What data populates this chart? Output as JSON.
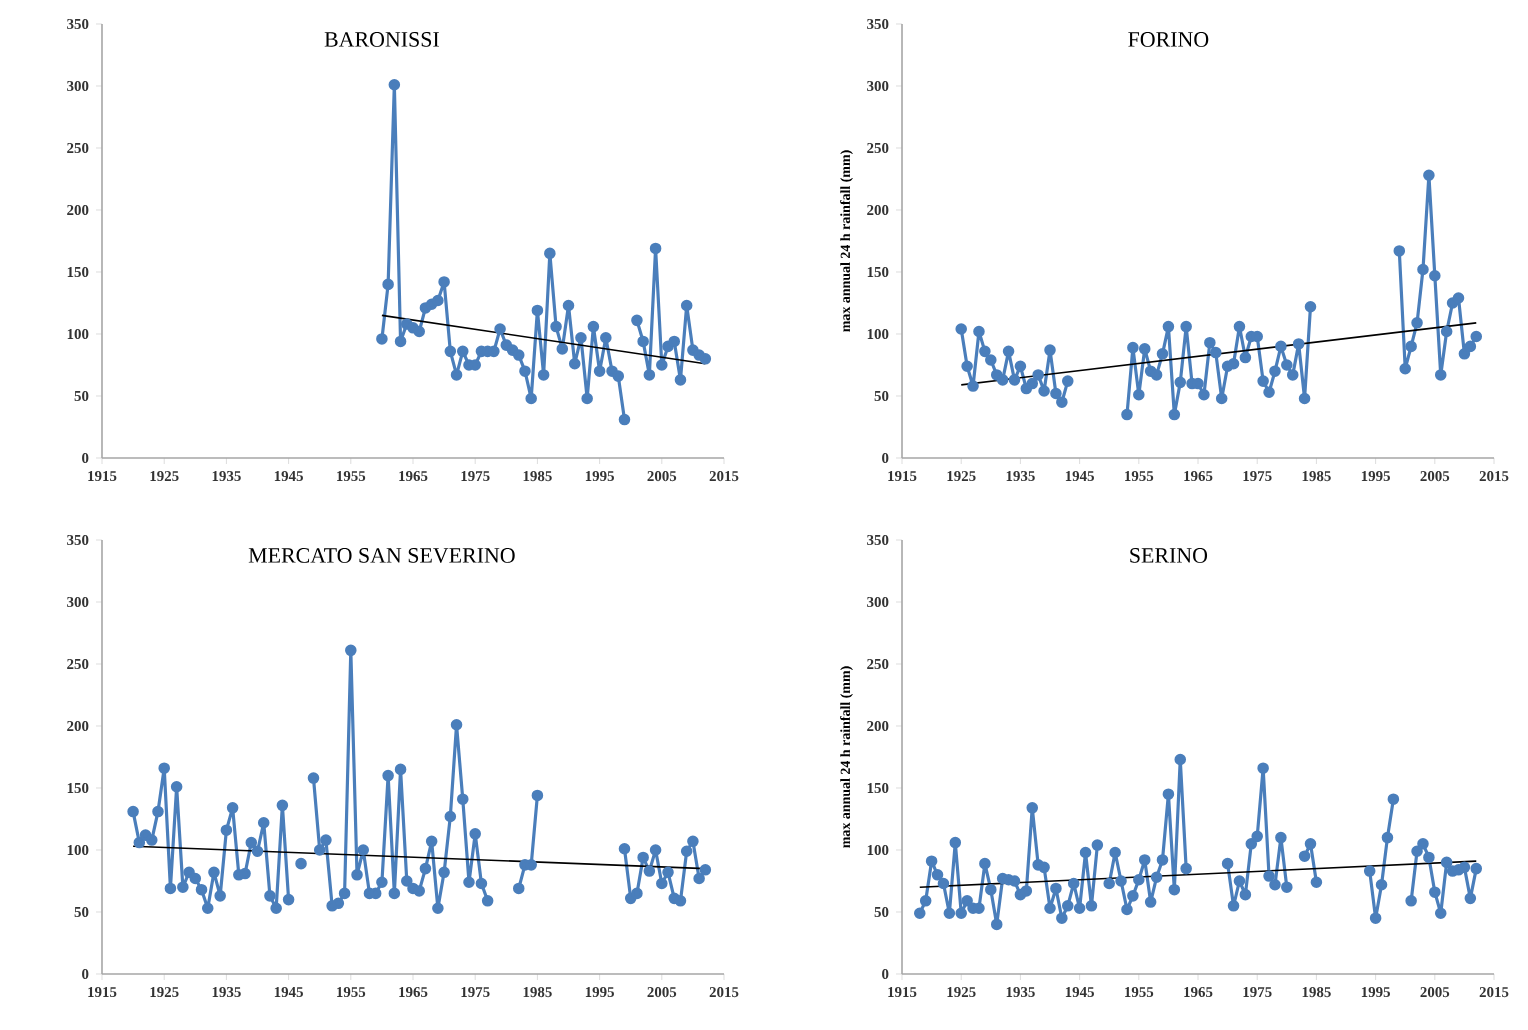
{
  "chart_data": [
    {
      "type": "line",
      "title": "BARONISSI",
      "xlim": [
        1915,
        2015
      ],
      "xticks": [
        1915,
        1925,
        1935,
        1945,
        1955,
        1965,
        1975,
        1985,
        1995,
        2005,
        2015
      ],
      "ylim": [
        0,
        350
      ],
      "yticks": [
        0,
        50,
        100,
        150,
        200,
        250,
        300,
        350
      ],
      "series": [
        {
          "color": "#4a7ebb",
          "marker": "circle",
          "x": [
            1960,
            1961,
            1962,
            1963,
            1964,
            1965,
            1966,
            1967,
            1968,
            1969,
            1970,
            1971,
            1972,
            1973,
            1974,
            1975,
            1976,
            1977,
            1978,
            1979,
            1980,
            1981,
            1982,
            1983,
            1984,
            1985,
            1986,
            1987,
            1988,
            1989,
            1990,
            1991,
            1992,
            1993,
            1994,
            1995,
            1996,
            1997,
            1998,
            1999,
            2000,
            2001,
            2002,
            2003,
            2004,
            2005,
            2006,
            2007,
            2008,
            2009,
            2010,
            2011,
            2012
          ],
          "values": [
            96,
            140,
            301,
            94,
            108,
            105,
            102,
            121,
            124,
            127,
            142,
            86,
            67,
            86,
            75,
            75,
            86,
            86,
            86,
            104,
            91,
            87,
            83,
            70,
            48,
            119,
            67,
            165,
            106,
            88,
            123,
            76,
            97,
            48,
            106,
            70,
            97,
            70,
            66,
            31,
            null,
            111,
            94,
            67,
            169,
            75,
            90,
            94,
            63,
            123,
            87,
            83,
            80
          ]
        },
        {
          "type": "line",
          "color": "#000000",
          "marker": "none",
          "x": [
            1960,
            2012
          ],
          "values": [
            115,
            76
          ]
        }
      ]
    },
    {
      "type": "line",
      "title": "FORINO",
      "ylabel": "max annual 24 h rainfall (mm)",
      "xlim": [
        1915,
        2015
      ],
      "xticks": [
        1915,
        1925,
        1935,
        1945,
        1955,
        1965,
        1975,
        1985,
        1995,
        2005,
        2015
      ],
      "ylim": [
        0,
        350
      ],
      "yticks": [
        0,
        50,
        100,
        150,
        200,
        250,
        300,
        350
      ],
      "series": [
        {
          "color": "#4a7ebb",
          "marker": "circle",
          "x": [
            1925,
            1926,
            1927,
            1928,
            1929,
            1930,
            1931,
            1932,
            1933,
            1934,
            1935,
            1936,
            1937,
            1938,
            1939,
            1940,
            1941,
            1942,
            1943,
            1944,
            1945,
            1946,
            1947,
            1948,
            1949,
            1950,
            1951,
            1952,
            1953,
            1954,
            1955,
            1956,
            1957,
            1958,
            1959,
            1960,
            1961,
            1962,
            1963,
            1964,
            1965,
            1966,
            1967,
            1968,
            1969,
            1970,
            1971,
            1972,
            1973,
            1974,
            1975,
            1976,
            1977,
            1978,
            1979,
            1980,
            1981,
            1982,
            1983,
            1984,
            1985,
            1986,
            1987,
            1988,
            1989,
            1990,
            1991,
            1992,
            1993,
            1994,
            1995,
            1996,
            1997,
            1998,
            1999,
            2000,
            2001,
            2002,
            2003,
            2004,
            2005,
            2006,
            2007,
            2008,
            2009,
            2010,
            2011,
            2012
          ],
          "values": [
            104,
            74,
            58,
            102,
            86,
            79,
            67,
            63,
            86,
            63,
            74,
            56,
            60,
            67,
            54,
            87,
            52,
            45,
            62,
            null,
            null,
            null,
            null,
            null,
            null,
            null,
            null,
            null,
            35,
            89,
            51,
            88,
            70,
            67,
            84,
            106,
            35,
            61,
            106,
            60,
            60,
            51,
            93,
            85,
            48,
            74,
            76,
            106,
            81,
            98,
            98,
            62,
            53,
            70,
            90,
            75,
            67,
            92,
            48,
            122,
            null,
            null,
            null,
            null,
            null,
            null,
            null,
            null,
            null,
            null,
            null,
            null,
            null,
            null,
            167,
            72,
            90,
            109,
            152,
            228,
            147,
            67,
            102,
            125,
            129,
            84,
            90,
            98
          ]
        },
        {
          "type": "line",
          "color": "#000000",
          "marker": "none",
          "x": [
            1925,
            2012
          ],
          "values": [
            59,
            109
          ]
        }
      ]
    },
    {
      "type": "line",
      "title": "MERCATO SAN SEVERINO",
      "xlim": [
        1915,
        2015
      ],
      "xticks": [
        1915,
        1925,
        1935,
        1945,
        1955,
        1965,
        1975,
        1985,
        1995,
        2005,
        2015
      ],
      "ylim": [
        0,
        350
      ],
      "yticks": [
        0,
        50,
        100,
        150,
        200,
        250,
        300,
        350
      ],
      "series": [
        {
          "color": "#4a7ebb",
          "marker": "circle",
          "x": [
            1920,
            1921,
            1922,
            1923,
            1924,
            1925,
            1926,
            1927,
            1928,
            1929,
            1930,
            1931,
            1932,
            1933,
            1934,
            1935,
            1936,
            1937,
            1938,
            1939,
            1940,
            1941,
            1942,
            1943,
            1944,
            1945,
            1946,
            1947,
            1948,
            1949,
            1950,
            1951,
            1952,
            1953,
            1954,
            1955,
            1956,
            1957,
            1958,
            1959,
            1960,
            1961,
            1962,
            1963,
            1964,
            1965,
            1966,
            1967,
            1968,
            1969,
            1970,
            1971,
            1972,
            1973,
            1974,
            1975,
            1976,
            1977,
            1978,
            1979,
            1980,
            1981,
            1982,
            1983,
            1984,
            1985,
            1986,
            1987,
            1988,
            1989,
            1990,
            1991,
            1992,
            1993,
            1994,
            1995,
            1996,
            1997,
            1998,
            1999,
            2000,
            2001,
            2002,
            2003,
            2004,
            2005,
            2006,
            2007,
            2008,
            2009,
            2010,
            2011,
            2012
          ],
          "values": [
            131,
            106,
            112,
            108,
            131,
            166,
            69,
            151,
            70,
            82,
            77,
            68,
            53,
            82,
            63,
            116,
            134,
            80,
            81,
            106,
            99,
            122,
            63,
            53,
            136,
            60,
            null,
            89,
            null,
            158,
            100,
            108,
            55,
            57,
            65,
            261,
            80,
            100,
            65,
            65,
            74,
            160,
            65,
            165,
            75,
            69,
            67,
            85,
            107,
            53,
            82,
            127,
            201,
            141,
            74,
            113,
            73,
            59,
            null,
            null,
            null,
            null,
            69,
            88,
            88,
            144,
            null,
            null,
            null,
            null,
            null,
            null,
            null,
            null,
            null,
            null,
            null,
            null,
            null,
            101,
            61,
            65,
            94,
            83,
            100,
            73,
            82,
            61,
            59,
            99,
            107,
            77,
            84
          ]
        },
        {
          "type": "line",
          "color": "#000000",
          "marker": "none",
          "x": [
            1920,
            2012
          ],
          "values": [
            103,
            85
          ]
        }
      ]
    },
    {
      "type": "line",
      "title": "SERINO",
      "ylabel": "max annual 24 h rainfall (mm)",
      "xlim": [
        1915,
        2015
      ],
      "xticks": [
        1915,
        1925,
        1935,
        1945,
        1955,
        1965,
        1975,
        1985,
        1995,
        2005,
        2015
      ],
      "ylim": [
        0,
        350
      ],
      "yticks": [
        0,
        50,
        100,
        150,
        200,
        250,
        300,
        350
      ],
      "series": [
        {
          "color": "#4a7ebb",
          "marker": "circle",
          "x": [
            1918,
            1919,
            1920,
            1921,
            1922,
            1923,
            1924,
            1925,
            1926,
            1927,
            1928,
            1929,
            1930,
            1931,
            1932,
            1933,
            1934,
            1935,
            1936,
            1937,
            1938,
            1939,
            1940,
            1941,
            1942,
            1943,
            1944,
            1945,
            1946,
            1947,
            1948,
            1949,
            1950,
            1951,
            1952,
            1953,
            1954,
            1955,
            1956,
            1957,
            1958,
            1959,
            1960,
            1961,
            1962,
            1963,
            1964,
            1965,
            1966,
            1967,
            1968,
            1969,
            1970,
            1971,
            1972,
            1973,
            1974,
            1975,
            1976,
            1977,
            1978,
            1979,
            1980,
            1981,
            1982,
            1983,
            1984,
            1985,
            1986,
            1987,
            1988,
            1989,
            1990,
            1991,
            1992,
            1993,
            1994,
            1995,
            1996,
            1997,
            1998,
            1999,
            2000,
            2001,
            2002,
            2003,
            2004,
            2005,
            2006,
            2007,
            2008,
            2009,
            2010,
            2011,
            2012
          ],
          "values": [
            49,
            59,
            91,
            80,
            73,
            49,
            106,
            49,
            59,
            53,
            53,
            89,
            68,
            40,
            77,
            76,
            75,
            64,
            67,
            134,
            88,
            86,
            53,
            69,
            45,
            55,
            73,
            53,
            98,
            55,
            104,
            null,
            73,
            98,
            75,
            52,
            63,
            76,
            92,
            58,
            78,
            92,
            145,
            68,
            173,
            85,
            null,
            null,
            null,
            null,
            null,
            null,
            89,
            55,
            75,
            64,
            105,
            111,
            166,
            79,
            72,
            110,
            70,
            null,
            null,
            95,
            105,
            74,
            null,
            null,
            null,
            null,
            null,
            null,
            null,
            null,
            83,
            45,
            72,
            110,
            141,
            null,
            null,
            59,
            99,
            105,
            94,
            66,
            49,
            90,
            83,
            84,
            86,
            61,
            85
          ]
        },
        {
          "type": "line",
          "color": "#000000",
          "marker": "none",
          "x": [
            1918,
            2012
          ],
          "values": [
            70,
            91
          ]
        }
      ]
    }
  ]
}
